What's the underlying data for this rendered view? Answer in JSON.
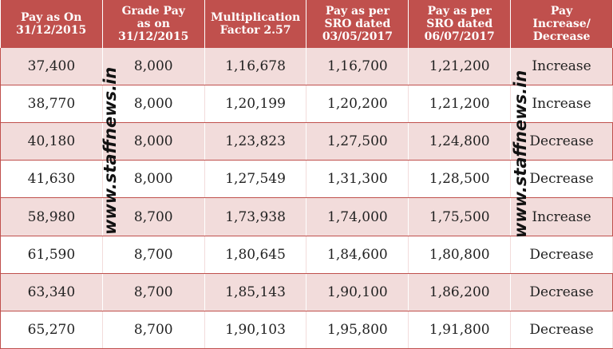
{
  "table": {
    "header": [
      "Pay as On\n31/12/2015",
      "Grade Pay\nas on\n31/12/2015",
      "Multiplication\nFactor 2.57",
      "Pay as per\nSRO dated\n03/05/2017",
      "Pay as per\nSRO dated\n06/07/2017",
      "Pay\nIncrease/\nDecrease"
    ],
    "rows": [
      [
        "37,400",
        "8,000",
        "1,16,678",
        "1,16,700",
        "1,21,200",
        "Increase"
      ],
      [
        "38,770",
        "8,000",
        "1,20,199",
        "1,20,200",
        "1,21,200",
        "Increase"
      ],
      [
        "40,180",
        "8,000",
        "1,23,823",
        "1,27,500",
        "1,24,800",
        "Decrease"
      ],
      [
        "41,630",
        "8,000",
        "1,27,549",
        "1,31,300",
        "1,28,500",
        "Decrease"
      ],
      [
        "58,980",
        "8,700",
        "1,73,938",
        "1,74,000",
        "1,75,500",
        "Increase"
      ],
      [
        "61,590",
        "8,700",
        "1,80,645",
        "1,84,600",
        "1,80,800",
        "Decrease"
      ],
      [
        "63,340",
        "8,700",
        "1,85,143",
        "1,90,100",
        "1,86,200",
        "Decrease"
      ],
      [
        "65,270",
        "8,700",
        "1,90,103",
        "1,95,800",
        "1,91,800",
        "Decrease"
      ]
    ]
  },
  "watermark": "www.staffnews.in"
}
